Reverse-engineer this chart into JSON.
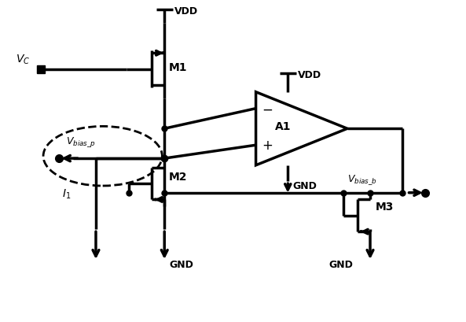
{
  "bg_color": "#ffffff",
  "line_color": "#000000",
  "lw": 2.5,
  "lw_thin": 1.5,
  "fig_width": 5.93,
  "fig_height": 4.1,
  "dpi": 100,
  "xlim": [
    0,
    10
  ],
  "ylim": [
    0,
    7
  ]
}
